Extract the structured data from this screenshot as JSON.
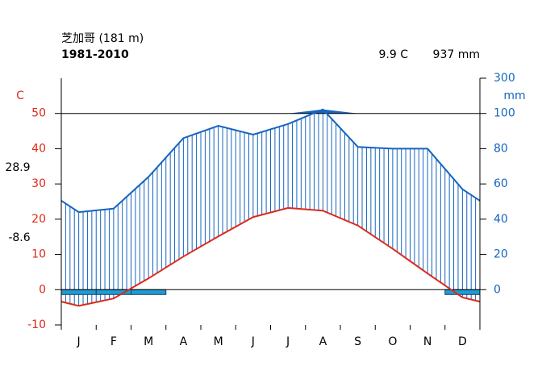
{
  "chart_data": {
    "type": "climate",
    "title": "芝加哥 (181 m)",
    "subtitle": "1981-2010",
    "mean_temperature_label": "9.9 C",
    "annual_precipitation_label": "937 mm",
    "max_temperature_warmest_month": 28.9,
    "min_temperature_coldest_month": -8.6,
    "y_axis_label": "C",
    "y2_axis_label": "mm",
    "categories": [
      "J",
      "F",
      "M",
      "A",
      "M",
      "J",
      "J",
      "A",
      "S",
      "O",
      "N",
      "D"
    ],
    "series": [
      {
        "color": "#dd2a1b",
        "values": [
          -4.6,
          -2.5,
          3.2,
          9.4,
          15.1,
          20.6,
          23.2,
          22.4,
          18.2,
          11.6,
          4.6,
          -2.2
        ]
      },
      {
        "color": "#1565c0",
        "axis": "y2",
        "values": [
          44,
          46,
          64,
          86,
          93,
          88,
          94,
          123,
          81,
          80,
          80,
          57
        ]
      }
    ],
    "frost": [
      true,
      true,
      true,
      false,
      false,
      false,
      false,
      false,
      false,
      false,
      false,
      true
    ],
    "frost_color": "#1f9bcf",
    "ylim": [
      -10,
      60
    ],
    "yticks": [
      -10,
      0,
      10,
      20,
      30,
      40,
      50
    ],
    "y2ticks": [
      0,
      20,
      40,
      60,
      80,
      100,
      300
    ]
  }
}
